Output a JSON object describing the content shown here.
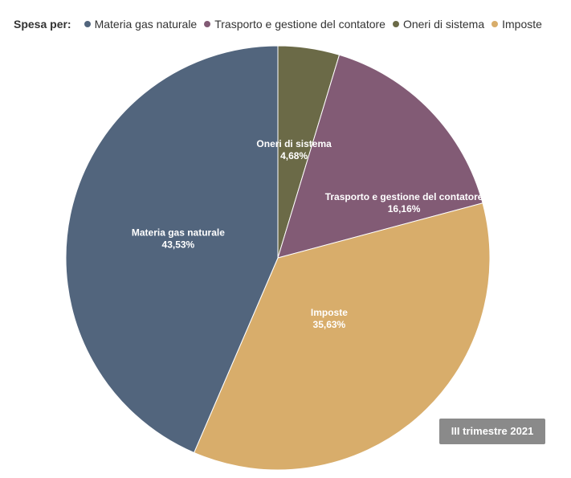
{
  "legend": {
    "title": "Spesa per:",
    "items": [
      {
        "label": "Materia gas naturale",
        "color": "#52657d"
      },
      {
        "label": "Trasporto e gestione del contatore",
        "color": "#825b75"
      },
      {
        "label": "Oneri di sistema",
        "color": "#6b6a47"
      },
      {
        "label": "Imposte",
        "color": "#d8ad6b"
      }
    ]
  },
  "period": "III trimestre 2021",
  "chart_data": {
    "type": "pie",
    "title": "",
    "start_angle_deg": 0,
    "direction": "clockwise",
    "slices": [
      {
        "name": "Oneri di sistema",
        "value": 4.68,
        "label": "4,68%",
        "color": "#6b6a47"
      },
      {
        "name": "Trasporto e gestione del contatore",
        "value": 16.16,
        "label": "16,16%",
        "color": "#825b75"
      },
      {
        "name": "Imposte",
        "value": 35.63,
        "label": "35,63%",
        "color": "#d8ad6b"
      },
      {
        "name": "Materia gas naturale",
        "value": 43.53,
        "label": "43,53%",
        "color": "#52657d"
      }
    ]
  }
}
